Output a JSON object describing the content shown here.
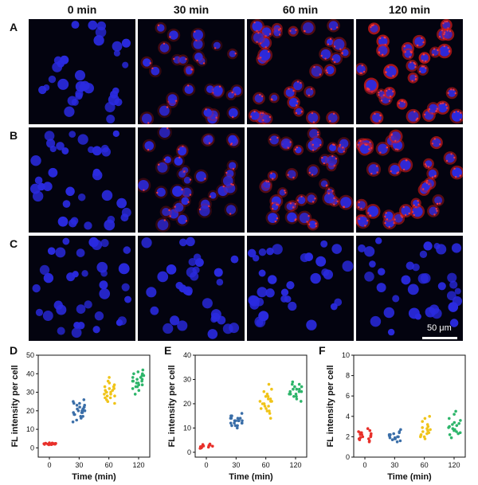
{
  "columns": [
    "0 min",
    "30 min",
    "60 min",
    "120 min"
  ],
  "rows": [
    "A",
    "B",
    "C"
  ],
  "red_levels": [
    [
      0.0,
      0.3,
      0.55,
      0.8
    ],
    [
      0.0,
      0.25,
      0.45,
      0.65
    ],
    [
      0.0,
      0.02,
      0.03,
      0.04
    ]
  ],
  "scale_bar": "50 μm",
  "colors": {
    "red": "#e8302a",
    "blue": "#3a6ea8",
    "yellow": "#f0c419",
    "green": "#2db56a",
    "nucleus": "#2a2ae0",
    "stain": "#d81c1c"
  },
  "chart_data": [
    {
      "type": "scatter",
      "panel": "D",
      "categories": [
        "0",
        "30",
        "60",
        "120"
      ],
      "ylim": [
        -5,
        50
      ],
      "yticks": [
        0,
        10,
        20,
        30,
        40,
        50
      ],
      "xlabel": "Time (min)",
      "ylabel": "FL intensity per cell",
      "series": [
        {
          "values": [
            2.3,
            1.9,
            2.1,
            2.6,
            2.0,
            1.8,
            2.4,
            2.2,
            2.5,
            1.7,
            2.1,
            2.3,
            2.0,
            2.7,
            1.9
          ]
        },
        {
          "values": [
            15,
            17,
            18,
            19,
            20,
            21,
            22,
            23,
            24,
            26,
            16,
            19,
            20,
            21,
            22,
            18,
            25,
            20,
            17,
            23,
            14,
            21,
            19,
            24,
            22,
            20
          ]
        },
        {
          "values": [
            24,
            26,
            27,
            28,
            29,
            30,
            31,
            32,
            33,
            34,
            35,
            36,
            38,
            29,
            31,
            30,
            27,
            33,
            28,
            25,
            32,
            30
          ]
        },
        {
          "values": [
            29,
            31,
            33,
            34,
            35,
            36,
            37,
            38,
            39,
            40,
            41,
            42,
            36,
            35,
            38,
            33,
            37,
            39,
            34,
            36,
            40,
            32
          ]
        }
      ]
    },
    {
      "type": "scatter",
      "panel": "E",
      "categories": [
        "0",
        "30",
        "60",
        "120"
      ],
      "ylim": [
        -2,
        40
      ],
      "yticks": [
        0,
        10,
        20,
        30,
        40
      ],
      "xlabel": "Time (min)",
      "ylabel": "FL intensity per cell",
      "series": [
        {
          "values": [
            2.5,
            1.8,
            2.2,
            3.0,
            2.0,
            1.6,
            2.8,
            2.4,
            3.2,
            1.9,
            2.6,
            2.1,
            3.4,
            2.3
          ]
        },
        {
          "values": [
            10,
            11,
            12,
            13,
            14,
            15,
            16,
            12,
            13,
            14,
            11,
            13,
            15,
            12,
            14,
            13,
            12,
            14,
            11,
            13
          ]
        },
        {
          "values": [
            14,
            16,
            17,
            18,
            19,
            20,
            21,
            22,
            23,
            24,
            26,
            28,
            20,
            21,
            19,
            22,
            18,
            23,
            20,
            25,
            17,
            21
          ]
        },
        {
          "values": [
            21,
            22,
            23,
            24,
            25,
            26,
            27,
            28,
            29,
            24,
            25,
            26,
            23,
            25,
            27,
            24,
            26,
            28
          ]
        }
      ]
    },
    {
      "type": "scatter",
      "panel": "F",
      "categories": [
        "0",
        "30",
        "60",
        "120"
      ],
      "ylim": [
        0,
        10
      ],
      "yticks": [
        0,
        2,
        4,
        6,
        8,
        10
      ],
      "xlabel": "Time (min)",
      "ylabel": "FL intensity per cell",
      "series": [
        {
          "values": [
            1.6,
            1.8,
            2.0,
            2.2,
            2.4,
            2.6,
            1.7,
            1.9,
            2.1,
            2.3,
            2.5,
            2.8,
            1.5,
            2.0,
            2.2,
            1.8,
            2.4,
            2.1
          ]
        },
        {
          "values": [
            1.5,
            1.7,
            1.9,
            2.1,
            2.3,
            2.5,
            1.6,
            1.8,
            2.0,
            2.2,
            2.4,
            2.7,
            1.9,
            2.0,
            1.8,
            2.2,
            2.1
          ]
        },
        {
          "values": [
            1.8,
            2.0,
            2.2,
            2.4,
            2.6,
            2.8,
            3.0,
            3.2,
            3.5,
            3.8,
            4.0,
            2.1,
            2.3,
            2.5,
            2.7,
            2.0,
            2.4,
            2.9
          ]
        },
        {
          "values": [
            1.9,
            2.2,
            2.4,
            2.6,
            2.8,
            3.0,
            3.2,
            3.4,
            3.6,
            3.8,
            4.2,
            4.5,
            2.5,
            2.9,
            3.1,
            2.7,
            3.3,
            2.3
          ]
        }
      ]
    }
  ]
}
